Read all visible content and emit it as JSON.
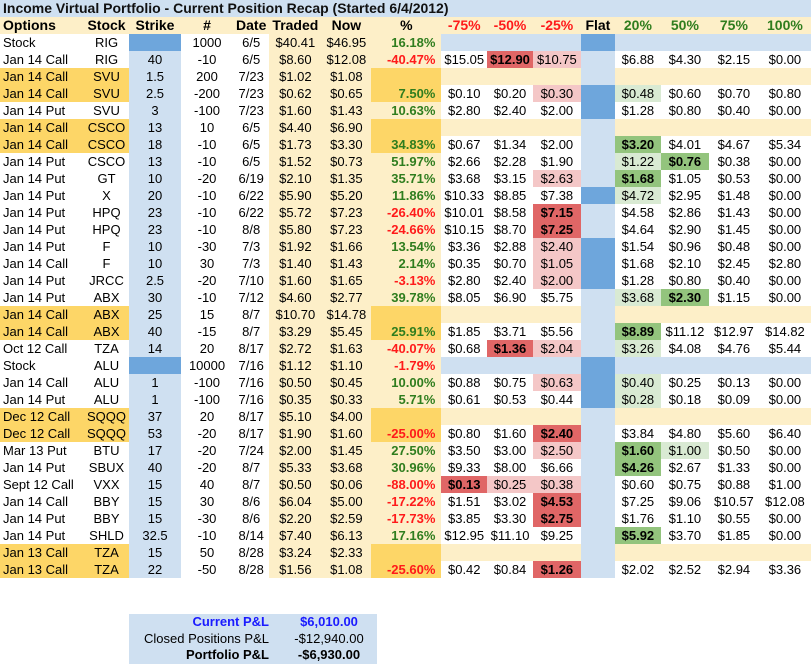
{
  "title": "Income Virtual Portfolio - Current Position Recap (Started 6/4/2012)",
  "headers": {
    "options": "Options",
    "stock": "Stock",
    "strike": "Strike",
    "num": "#",
    "date": "Date",
    "traded": "Traded",
    "now": "Now",
    "pct": "%",
    "m75": "-75%",
    "m50": "-50%",
    "m25": "-25%",
    "flat": "Flat",
    "p20": "20%",
    "p50": "50%",
    "p75": "75%",
    "p100": "100%"
  },
  "rows": [
    {
      "opt": "Stock",
      "stk": "RIG",
      "strike": "",
      "num": "1000",
      "date": "6/5",
      "traded": "$40.41",
      "now": "$46.95",
      "pct": "16.18%",
      "pctc": "grn",
      "hl": "",
      "pctbg": "",
      "stock": true,
      "s": [
        "",
        "",
        "",
        "",
        "",
        "",
        ""
      ],
      "sc": [
        "",
        "",
        "",
        "",
        "",
        "",
        ""
      ]
    },
    {
      "opt": "Jan 14 Call",
      "stk": "RIG",
      "strike": "40",
      "num": "-10",
      "date": "6/5",
      "traded": "$8.60",
      "now": "$12.08",
      "pct": "-40.47%",
      "pctc": "red",
      "hl": "",
      "pctbg": "",
      "s": [
        "$15.05",
        "$12.90",
        "$10.75",
        "$6.88",
        "$4.30",
        "$2.15",
        "$0.00"
      ],
      "sc": [
        "",
        "redD",
        "pinkL",
        "",
        "",
        "",
        ""
      ]
    },
    {
      "opt": "Jan 14 Call",
      "stk": "SVU",
      "strike": "1.5",
      "num": "200",
      "date": "7/23",
      "traded": "$1.02",
      "now": "$1.08",
      "pct": "",
      "pctc": "",
      "hl": "gold",
      "pctbg": "gold",
      "pair": "top",
      "s": [
        "",
        "",
        "",
        "",
        "",
        "",
        ""
      ],
      "sc": [
        "",
        "",
        "",
        "",
        "",
        "",
        ""
      ]
    },
    {
      "opt": "Jan 14 Call",
      "stk": "SVU",
      "strike": "2.5",
      "num": "-200",
      "date": "7/23",
      "traded": "$0.62",
      "now": "$0.65",
      "pct": "7.50%",
      "pctc": "grn",
      "hl": "gold",
      "pctbg": "gold",
      "s": [
        "$0.10",
        "$0.20",
        "$0.30",
        "$0.48",
        "$0.60",
        "$0.70",
        "$0.80"
      ],
      "sc": [
        "",
        "",
        "pinkL",
        "grnL",
        "",
        "",
        ""
      ],
      "flatDark": true
    },
    {
      "opt": "Jan 14 Put",
      "stk": "SVU",
      "strike": "3",
      "num": "-100",
      "date": "7/23",
      "traded": "$1.60",
      "now": "$1.43",
      "pct": "10.63%",
      "pctc": "grn",
      "hl": "",
      "pctbg": "",
      "s": [
        "$2.80",
        "$2.40",
        "$2.00",
        "$1.28",
        "$0.80",
        "$0.40",
        "$0.00"
      ],
      "sc": [
        "",
        "",
        "",
        "",
        "",
        "",
        ""
      ],
      "flatDark": true
    },
    {
      "opt": "Jan 14 Call",
      "stk": "CSCO",
      "strike": "13",
      "num": "10",
      "date": "6/5",
      "traded": "$4.40",
      "now": "$6.90",
      "pct": "",
      "pctc": "",
      "hl": "gold",
      "pctbg": "gold",
      "pair": "top",
      "s": [
        "",
        "",
        "",
        "",
        "",
        "",
        ""
      ],
      "sc": [
        "",
        "",
        "",
        "",
        "",
        "",
        ""
      ]
    },
    {
      "opt": "Jan 14 Call",
      "stk": "CSCO",
      "strike": "18",
      "num": "-10",
      "date": "6/5",
      "traded": "$1.73",
      "now": "$3.30",
      "pct": "34.83%",
      "pctc": "grn",
      "hl": "gold",
      "pctbg": "gold",
      "s": [
        "$0.67",
        "$1.34",
        "$2.00",
        "$3.20",
        "$4.01",
        "$4.67",
        "$5.34"
      ],
      "sc": [
        "",
        "",
        "",
        "grnD",
        "",
        "",
        ""
      ]
    },
    {
      "opt": "Jan 14 Put",
      "stk": "CSCO",
      "strike": "13",
      "num": "-10",
      "date": "6/5",
      "traded": "$1.52",
      "now": "$0.73",
      "pct": "51.97%",
      "pctc": "grn",
      "hl": "",
      "pctbg": "",
      "s": [
        "$2.66",
        "$2.28",
        "$1.90",
        "$1.22",
        "$0.76",
        "$0.38",
        "$0.00"
      ],
      "sc": [
        "",
        "",
        "",
        "grnL",
        "grnD",
        "",
        ""
      ]
    },
    {
      "opt": "Jan 14 Put",
      "stk": "GT",
      "strike": "10",
      "num": "-20",
      "date": "6/19",
      "traded": "$2.10",
      "now": "$1.35",
      "pct": "35.71%",
      "pctc": "grn",
      "hl": "",
      "pctbg": "",
      "s": [
        "$3.68",
        "$3.15",
        "$2.63",
        "$1.68",
        "$1.05",
        "$0.53",
        "$0.00"
      ],
      "sc": [
        "",
        "",
        "pinkL",
        "grnD",
        "",
        "",
        ""
      ]
    },
    {
      "opt": "Jan 14 Put",
      "stk": "X",
      "strike": "20",
      "num": "-10",
      "date": "6/22",
      "traded": "$5.90",
      "now": "$5.20",
      "pct": "11.86%",
      "pctc": "grn",
      "hl": "",
      "pctbg": "",
      "s": [
        "$10.33",
        "$8.85",
        "$7.38",
        "$4.72",
        "$2.95",
        "$1.48",
        "$0.00"
      ],
      "sc": [
        "",
        "",
        "",
        "grnL",
        "",
        "",
        ""
      ],
      "flatDark": true
    },
    {
      "opt": "Jan 14 Put",
      "stk": "HPQ",
      "strike": "23",
      "num": "-10",
      "date": "6/22",
      "traded": "$5.72",
      "now": "$7.23",
      "pct": "-26.40%",
      "pctc": "red",
      "hl": "",
      "pctbg": "",
      "s": [
        "$10.01",
        "$8.58",
        "$7.15",
        "$4.58",
        "$2.86",
        "$1.43",
        "$0.00"
      ],
      "sc": [
        "",
        "",
        "redD",
        "",
        "",
        "",
        ""
      ]
    },
    {
      "opt": "Jan 14 Put",
      "stk": "HPQ",
      "strike": "23",
      "num": "-10",
      "date": "8/8",
      "traded": "$5.80",
      "now": "$7.23",
      "pct": "-24.66%",
      "pctc": "red",
      "hl": "",
      "pctbg": "",
      "s": [
        "$10.15",
        "$8.70",
        "$7.25",
        "$4.64",
        "$2.90",
        "$1.45",
        "$0.00"
      ],
      "sc": [
        "",
        "",
        "redD",
        "",
        "",
        "",
        ""
      ]
    },
    {
      "opt": "Jan 14 Put",
      "stk": "F",
      "strike": "10",
      "num": "-30",
      "date": "7/3",
      "traded": "$1.92",
      "now": "$1.66",
      "pct": "13.54%",
      "pctc": "grn",
      "hl": "",
      "pctbg": "",
      "s": [
        "$3.36",
        "$2.88",
        "$2.40",
        "$1.54",
        "$0.96",
        "$0.48",
        "$0.00"
      ],
      "sc": [
        "",
        "",
        "pinkL",
        "",
        "",
        "",
        ""
      ],
      "flatDark": true
    },
    {
      "opt": "Jan 14 Call",
      "stk": "F",
      "strike": "10",
      "num": "30",
      "date": "7/3",
      "traded": "$1.40",
      "now": "$1.43",
      "pct": "2.14%",
      "pctc": "grn",
      "hl": "",
      "pctbg": "",
      "s": [
        "$0.35",
        "$0.70",
        "$1.05",
        "$1.68",
        "$2.10",
        "$2.45",
        "$2.80"
      ],
      "sc": [
        "",
        "",
        "pinkL",
        "",
        "",
        "",
        ""
      ],
      "flatDark": true
    },
    {
      "opt": "Jan 14 Put",
      "stk": "JRCC",
      "strike": "2.5",
      "num": "-20",
      "date": "7/10",
      "traded": "$1.60",
      "now": "$1.65",
      "pct": "-3.13%",
      "pctc": "red",
      "hl": "",
      "pctbg": "",
      "s": [
        "$2.80",
        "$2.40",
        "$2.00",
        "$1.28",
        "$0.80",
        "$0.40",
        "$0.00"
      ],
      "sc": [
        "",
        "",
        "pinkL",
        "",
        "",
        "",
        ""
      ],
      "flatDark": true
    },
    {
      "opt": "Jan 14 Put",
      "stk": "ABX",
      "strike": "30",
      "num": "-10",
      "date": "7/12",
      "traded": "$4.60",
      "now": "$2.77",
      "pct": "39.78%",
      "pctc": "grn",
      "hl": "",
      "pctbg": "",
      "s": [
        "$8.05",
        "$6.90",
        "$5.75",
        "$3.68",
        "$2.30",
        "$1.15",
        "$0.00"
      ],
      "sc": [
        "",
        "",
        "",
        "grnL",
        "grnD",
        "",
        ""
      ]
    },
    {
      "opt": "Jan 14 Call",
      "stk": "ABX",
      "strike": "25",
      "num": "15",
      "date": "8/7",
      "traded": "$10.70",
      "now": "$14.78",
      "pct": "",
      "pctc": "",
      "hl": "gold",
      "pctbg": "gold",
      "pair": "top",
      "s": [
        "",
        "",
        "",
        "",
        "",
        "",
        ""
      ],
      "sc": [
        "",
        "",
        "",
        "",
        "",
        "",
        ""
      ]
    },
    {
      "opt": "Jan 14 Call",
      "stk": "ABX",
      "strike": "40",
      "num": "-15",
      "date": "8/7",
      "traded": "$3.29",
      "now": "$5.45",
      "pct": "25.91%",
      "pctc": "grn",
      "hl": "gold",
      "pctbg": "gold",
      "s": [
        "$1.85",
        "$3.71",
        "$5.56",
        "$8.89",
        "$11.12",
        "$12.97",
        "$14.82"
      ],
      "sc": [
        "",
        "",
        "",
        "grnD",
        "",
        "",
        ""
      ]
    },
    {
      "opt": "Oct 12 Call",
      "stk": "TZA",
      "strike": "14",
      "num": "20",
      "date": "8/17",
      "traded": "$2.72",
      "now": "$1.63",
      "pct": "-40.07%",
      "pctc": "red",
      "hl": "",
      "pctbg": "",
      "s": [
        "$0.68",
        "$1.36",
        "$2.04",
        "$3.26",
        "$4.08",
        "$4.76",
        "$5.44"
      ],
      "sc": [
        "",
        "redD",
        "pinkL",
        "grnL",
        "",
        "",
        ""
      ]
    },
    {
      "opt": "Stock",
      "stk": "ALU",
      "strike": "",
      "num": "10000",
      "date": "7/16",
      "traded": "$1.12",
      "now": "$1.10",
      "pct": "-1.79%",
      "pctc": "red",
      "hl": "",
      "pctbg": "",
      "stock": true,
      "s": [
        "",
        "",
        "",
        "",
        "",
        "",
        ""
      ],
      "sc": [
        "",
        "",
        "",
        "",
        "",
        "",
        ""
      ]
    },
    {
      "opt": "Jan 14 Call",
      "stk": "ALU",
      "strike": "1",
      "num": "-100",
      "date": "7/16",
      "traded": "$0.50",
      "now": "$0.45",
      "pct": "10.00%",
      "pctc": "grn",
      "hl": "",
      "pctbg": "",
      "s": [
        "$0.88",
        "$0.75",
        "$0.63",
        "$0.40",
        "$0.25",
        "$0.13",
        "$0.00"
      ],
      "sc": [
        "",
        "",
        "pinkL",
        "grnL",
        "",
        "",
        ""
      ],
      "flatDark": true
    },
    {
      "opt": "Jan 14 Put",
      "stk": "ALU",
      "strike": "1",
      "num": "-100",
      "date": "7/16",
      "traded": "$0.35",
      "now": "$0.33",
      "pct": "5.71%",
      "pctc": "grn",
      "hl": "",
      "pctbg": "",
      "s": [
        "$0.61",
        "$0.53",
        "$0.44",
        "$0.28",
        "$0.18",
        "$0.09",
        "$0.00"
      ],
      "sc": [
        "",
        "",
        "",
        "grnL",
        "",
        "",
        ""
      ],
      "flatDark": true
    },
    {
      "opt": "Dec 12 Call",
      "stk": "SQQQ",
      "strike": "37",
      "num": "20",
      "date": "8/17",
      "traded": "$5.10",
      "now": "$4.00",
      "pct": "",
      "pctc": "",
      "hl": "gold",
      "pctbg": "gold",
      "pair": "top",
      "s": [
        "",
        "",
        "",
        "",
        "",
        "",
        ""
      ],
      "sc": [
        "",
        "",
        "",
        "",
        "",
        "",
        ""
      ]
    },
    {
      "opt": "Dec 12 Call",
      "stk": "SQQQ",
      "strike": "53",
      "num": "-20",
      "date": "8/17",
      "traded": "$1.90",
      "now": "$1.60",
      "pct": "-25.00%",
      "pctc": "red",
      "hl": "gold",
      "pctbg": "gold",
      "s": [
        "$0.80",
        "$1.60",
        "$2.40",
        "$3.84",
        "$4.80",
        "$5.60",
        "$6.40"
      ],
      "sc": [
        "",
        "",
        "redD",
        "",
        "",
        "",
        ""
      ]
    },
    {
      "opt": "Mar 13 Put",
      "stk": "BTU",
      "strike": "17",
      "num": "-20",
      "date": "7/24",
      "traded": "$2.00",
      "now": "$1.45",
      "pct": "27.50%",
      "pctc": "grn",
      "hl": "",
      "pctbg": "",
      "s": [
        "$3.50",
        "$3.00",
        "$2.50",
        "$1.60",
        "$1.00",
        "$0.50",
        "$0.00"
      ],
      "sc": [
        "",
        "",
        "pinkL",
        "grnD",
        "grnL",
        "",
        ""
      ]
    },
    {
      "opt": "Jan 14 Put",
      "stk": "SBUX",
      "strike": "40",
      "num": "-20",
      "date": "8/7",
      "traded": "$5.33",
      "now": "$3.68",
      "pct": "30.96%",
      "pctc": "grn",
      "hl": "",
      "pctbg": "",
      "s": [
        "$9.33",
        "$8.00",
        "$6.66",
        "$4.26",
        "$2.67",
        "$1.33",
        "$0.00"
      ],
      "sc": [
        "",
        "",
        "",
        "grnD",
        "",
        "",
        ""
      ]
    },
    {
      "opt": "Sept 12 Call",
      "stk": "VXX",
      "strike": "15",
      "num": "40",
      "date": "8/7",
      "traded": "$0.50",
      "now": "$0.06",
      "pct": "-88.00%",
      "pctc": "red",
      "hl": "",
      "pctbg": "",
      "s": [
        "$0.13",
        "$0.25",
        "$0.38",
        "$0.60",
        "$0.75",
        "$0.88",
        "$1.00"
      ],
      "sc": [
        "redD",
        "pinkL",
        "pinkL",
        "",
        "",
        "",
        ""
      ]
    },
    {
      "opt": "Jan 14 Call",
      "stk": "BBY",
      "strike": "15",
      "num": "30",
      "date": "8/6",
      "traded": "$6.04",
      "now": "$5.00",
      "pct": "-17.22%",
      "pctc": "red",
      "hl": "",
      "pctbg": "",
      "s": [
        "$1.51",
        "$3.02",
        "$4.53",
        "$7.25",
        "$9.06",
        "$10.57",
        "$12.08"
      ],
      "sc": [
        "",
        "",
        "redD",
        "",
        "",
        "",
        ""
      ]
    },
    {
      "opt": "Jan 14 Put",
      "stk": "BBY",
      "strike": "15",
      "num": "-30",
      "date": "8/6",
      "traded": "$2.20",
      "now": "$2.59",
      "pct": "-17.73%",
      "pctc": "red",
      "hl": "",
      "pctbg": "",
      "s": [
        "$3.85",
        "$3.30",
        "$2.75",
        "$1.76",
        "$1.10",
        "$0.55",
        "$0.00"
      ],
      "sc": [
        "",
        "",
        "redD",
        "",
        "",
        "",
        ""
      ]
    },
    {
      "opt": "Jan 14 Put",
      "stk": "SHLD",
      "strike": "32.5",
      "num": "-10",
      "date": "8/14",
      "traded": "$7.40",
      "now": "$6.13",
      "pct": "17.16%",
      "pctc": "grn",
      "hl": "",
      "pctbg": "",
      "s": [
        "$12.95",
        "$11.10",
        "$9.25",
        "$5.92",
        "$3.70",
        "$1.85",
        "$0.00"
      ],
      "sc": [
        "",
        "",
        "",
        "grnD",
        "",
        "",
        ""
      ]
    },
    {
      "opt": "Jan 13 Call",
      "stk": "TZA",
      "strike": "15",
      "num": "50",
      "date": "8/28",
      "traded": "$3.24",
      "now": "$2.33",
      "pct": "",
      "pctc": "",
      "hl": "gold",
      "pctbg": "gold",
      "pair": "top",
      "s": [
        "",
        "",
        "",
        "",
        "",
        "",
        ""
      ],
      "sc": [
        "",
        "",
        "",
        "",
        "",
        "",
        ""
      ]
    },
    {
      "opt": "Jan 13 Call",
      "stk": "TZA",
      "strike": "22",
      "num": "-50",
      "date": "8/28",
      "traded": "$1.56",
      "now": "$1.08",
      "pct": "-25.60%",
      "pctc": "red",
      "hl": "gold",
      "pctbg": "gold",
      "s": [
        "$0.42",
        "$0.84",
        "$1.26",
        "$2.02",
        "$2.52",
        "$2.94",
        "$3.36"
      ],
      "sc": [
        "",
        "",
        "redD",
        "",
        "",
        "",
        ""
      ]
    }
  ],
  "summary": {
    "current_label": "Current P&L",
    "current_value": "$6,010.00",
    "closed_label": "Closed Positions P&L",
    "closed_value": "-$12,940.00",
    "portfolio_label": "Portfolio P&L",
    "portfolio_value": "-$6,930.00"
  },
  "colors": {
    "header_bg": "#fdefc8",
    "title_bg": "#cfe0f1",
    "pair_highlight": "#fdd667",
    "loss_text": "#ff1a1a",
    "gain_text": "#2f7d1e",
    "loss_strong": "#e06666",
    "loss_light": "#f4c7c7",
    "gain_strong": "#93c47d",
    "gain_light": "#d9ead3"
  }
}
